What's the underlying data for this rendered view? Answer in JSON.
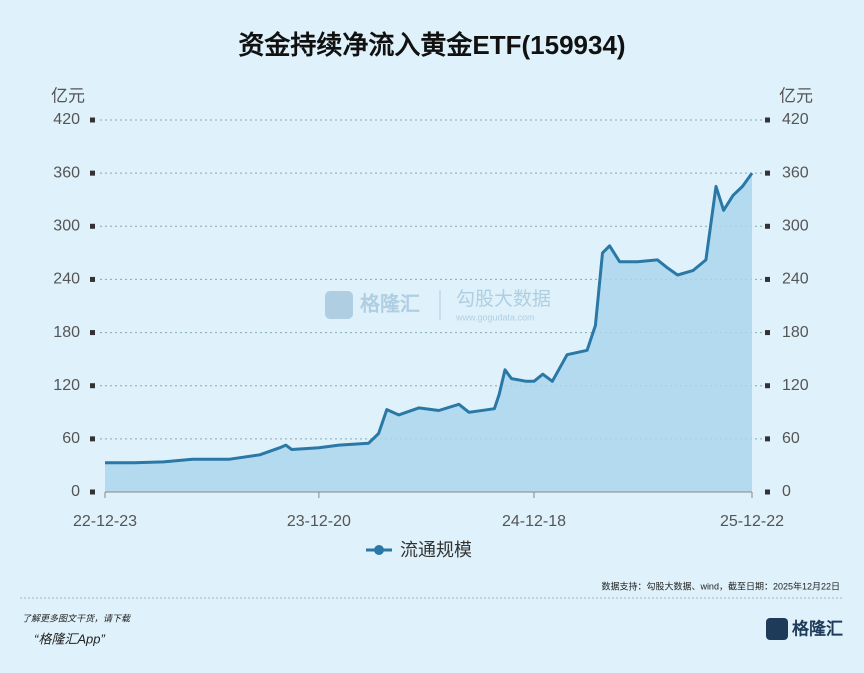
{
  "chart_data": {
    "type": "line",
    "title": "资金持续净流入黄金ETF(159934)",
    "ylabel": "亿元",
    "y2label": "亿元",
    "x": [
      "22-12-23",
      "23-02-10",
      "23-04-01",
      "23-05-20",
      "23-07-22",
      "23-09-11",
      "23-10-15",
      "23-10-25",
      "23-11-04",
      "23-12-20",
      "24-01-23",
      "24-03-13",
      "24-03-30",
      "24-04-13",
      "24-05-03",
      "24-06-06",
      "24-07-10",
      "24-08-13",
      "24-08-30",
      "24-10-12",
      "24-10-20",
      "24-10-30",
      "24-11-10",
      "24-12-05",
      "24-12-18",
      "25-01-02",
      "25-01-18",
      "25-02-12",
      "25-03-18",
      "25-04-01",
      "25-04-13",
      "25-04-25",
      "25-05-12",
      "25-06-11",
      "25-07-15",
      "25-08-01",
      "25-08-18",
      "25-09-13",
      "25-10-05",
      "25-10-22",
      "25-11-04",
      "25-11-20",
      "25-12-06",
      "25-12-22"
    ],
    "series": [
      {
        "name": "流通规模",
        "color": "#2a78a6",
        "fill": "#acd6eb",
        "values": [
          33,
          33,
          34,
          37,
          37,
          42,
          50,
          53,
          48,
          50,
          53,
          55,
          66,
          93,
          87,
          95,
          92,
          99,
          90,
          94,
          110,
          138,
          128,
          125,
          125,
          133,
          125,
          155,
          160,
          188,
          270,
          278,
          260,
          260,
          262,
          253,
          245,
          250,
          262,
          345,
          318,
          335,
          345,
          360
        ]
      }
    ],
    "xlim": [
      "22-12-23",
      "25-12-22"
    ],
    "xticks": [
      "22-12-23",
      "23-12-20",
      "24-12-18",
      "25-12-22"
    ],
    "ylim": [
      0,
      420
    ],
    "yticks": [
      0,
      60,
      120,
      180,
      240,
      300,
      360,
      420
    ],
    "y2lim": [
      0,
      420
    ],
    "y2ticks": [
      0,
      60,
      120,
      180,
      240,
      300,
      360,
      420
    ],
    "grid": true,
    "source": "数据支持：勾股大数据、wind，截至日期：2025年12月22日"
  },
  "watermark": {
    "brand": "格隆汇",
    "data": "勾股大数据",
    "url": "www.gogudata.com"
  },
  "footer": {
    "line1": "了解更多图文干货，请下载",
    "line2": "“格隆汇App”",
    "logo": "格隆汇"
  }
}
